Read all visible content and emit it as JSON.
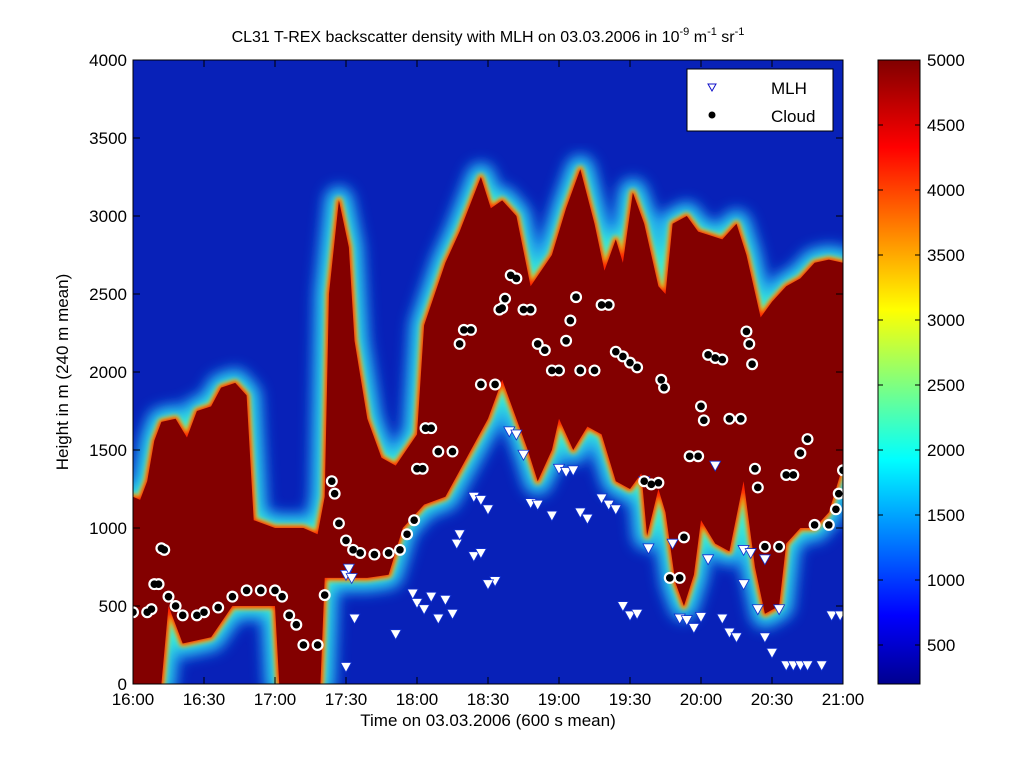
{
  "chart_data": {
    "type": "heatmap",
    "title_main": "CL31 T-REX backscatter density with MLH on 03.03.2006 in 10",
    "title_exp1": "-9",
    "title_mid": " m",
    "title_exp2": "-1",
    "title_mid2": " sr",
    "title_exp3": "-1",
    "xlabel": "Time on 03.03.2006 (600 s mean)",
    "ylabel": "Height in m (240 m mean)",
    "xlim": [
      16.0,
      21.0
    ],
    "ylim": [
      0,
      4000
    ],
    "x_ticks": [
      16.0,
      16.5,
      17.0,
      17.5,
      18.0,
      18.5,
      19.0,
      19.5,
      20.0,
      20.5,
      21.0
    ],
    "x_tick_labels": [
      "16:00",
      "16:30",
      "17:00",
      "17:30",
      "18:00",
      "18:30",
      "19:00",
      "19:30",
      "20:00",
      "20:30",
      "21:00"
    ],
    "y_ticks": [
      0,
      500,
      1000,
      1500,
      2000,
      2500,
      3000,
      3500,
      4000
    ],
    "y_tick_labels": [
      "0",
      "500",
      "1000",
      "1500",
      "2000",
      "2500",
      "3000",
      "3500",
      "4000"
    ],
    "colorbar": {
      "clim": [
        200,
        5000
      ],
      "ticks": [
        500,
        1000,
        1500,
        2000,
        2500,
        3000,
        3500,
        4000,
        4500,
        5000
      ],
      "tick_labels": [
        "500",
        "1000",
        "1500",
        "2000",
        "2500",
        "3000",
        "3500",
        "4000",
        "4500",
        "5000"
      ]
    },
    "legend": {
      "placement": "top-right",
      "entries": [
        "MLH",
        "Cloud"
      ]
    },
    "layer_top": [
      [
        16.0,
        1200
      ],
      [
        16.05,
        1180
      ],
      [
        16.1,
        1300
      ],
      [
        16.15,
        1560
      ],
      [
        16.2,
        1680
      ],
      [
        16.3,
        1700
      ],
      [
        16.38,
        1580
      ],
      [
        16.45,
        1750
      ],
      [
        16.55,
        1780
      ],
      [
        16.62,
        1900
      ],
      [
        16.72,
        1930
      ],
      [
        16.8,
        1850
      ],
      [
        16.85,
        1050
      ],
      [
        17.0,
        1000
      ],
      [
        17.2,
        1000
      ],
      [
        17.3,
        960
      ],
      [
        17.35,
        1200
      ],
      [
        17.38,
        2500
      ],
      [
        17.45,
        3100
      ],
      [
        17.52,
        2800
      ],
      [
        17.56,
        2200
      ],
      [
        17.65,
        1700
      ],
      [
        17.75,
        1450
      ],
      [
        17.85,
        1400
      ],
      [
        18.0,
        1600
      ],
      [
        18.05,
        2300
      ],
      [
        18.2,
        2700
      ],
      [
        18.3,
        2900
      ],
      [
        18.45,
        3250
      ],
      [
        18.52,
        3050
      ],
      [
        18.6,
        3100
      ],
      [
        18.7,
        3000
      ],
      [
        18.8,
        2550
      ],
      [
        18.95,
        2750
      ],
      [
        19.05,
        3050
      ],
      [
        19.15,
        3300
      ],
      [
        19.25,
        2950
      ],
      [
        19.32,
        2650
      ],
      [
        19.4,
        2850
      ],
      [
        19.45,
        2700
      ],
      [
        19.52,
        3150
      ],
      [
        19.6,
        2950
      ],
      [
        19.7,
        2550
      ],
      [
        19.75,
        2500
      ],
      [
        19.8,
        2950
      ],
      [
        19.9,
        3000
      ],
      [
        19.98,
        2900
      ],
      [
        20.05,
        2880
      ],
      [
        20.15,
        2850
      ],
      [
        20.25,
        2950
      ],
      [
        20.32,
        2750
      ],
      [
        20.42,
        2350
      ],
      [
        20.5,
        2450
      ],
      [
        20.6,
        2550
      ],
      [
        20.7,
        2600
      ],
      [
        20.8,
        2700
      ],
      [
        20.9,
        2720
      ],
      [
        21.0,
        2700
      ]
    ],
    "layer_bottom": [
      [
        16.0,
        0
      ],
      [
        16.2,
        0
      ],
      [
        16.25,
        500
      ],
      [
        16.35,
        260
      ],
      [
        16.55,
        300
      ],
      [
        16.7,
        500
      ],
      [
        17.0,
        500
      ],
      [
        17.03,
        0
      ],
      [
        17.32,
        0
      ],
      [
        17.35,
        680
      ],
      [
        17.65,
        680
      ],
      [
        17.8,
        700
      ],
      [
        17.9,
        1000
      ],
      [
        18.05,
        1150
      ],
      [
        18.2,
        1200
      ],
      [
        18.35,
        1450
      ],
      [
        18.5,
        1700
      ],
      [
        18.6,
        1950
      ],
      [
        18.7,
        1700
      ],
      [
        18.78,
        1500
      ],
      [
        18.85,
        1300
      ],
      [
        18.95,
        1500
      ],
      [
        19.0,
        1700
      ],
      [
        19.1,
        1500
      ],
      [
        19.2,
        1650
      ],
      [
        19.3,
        1600
      ],
      [
        19.4,
        1300
      ],
      [
        19.5,
        1250
      ],
      [
        19.58,
        1350
      ],
      [
        19.62,
        950
      ],
      [
        19.7,
        1250
      ],
      [
        19.75,
        1100
      ],
      [
        19.82,
        650
      ],
      [
        19.88,
        500
      ],
      [
        19.95,
        700
      ],
      [
        20.0,
        1050
      ],
      [
        20.1,
        900
      ],
      [
        20.2,
        850
      ],
      [
        20.3,
        1300
      ],
      [
        20.38,
        750
      ],
      [
        20.45,
        450
      ],
      [
        20.55,
        500
      ],
      [
        20.6,
        900
      ],
      [
        20.7,
        1000
      ],
      [
        20.8,
        1000
      ],
      [
        20.9,
        1100
      ],
      [
        21.0,
        1400
      ]
    ],
    "series_mlh": [
      [
        17.5,
        700
      ],
      [
        17.52,
        740
      ],
      [
        17.54,
        680
      ],
      [
        17.56,
        420
      ],
      [
        17.5,
        110
      ],
      [
        17.85,
        320
      ],
      [
        17.97,
        580
      ],
      [
        18.0,
        520
      ],
      [
        18.05,
        480
      ],
      [
        18.1,
        560
      ],
      [
        18.15,
        420
      ],
      [
        18.2,
        540
      ],
      [
        18.25,
        450
      ],
      [
        18.28,
        900
      ],
      [
        18.3,
        960
      ],
      [
        18.4,
        1200
      ],
      [
        18.45,
        1180
      ],
      [
        18.5,
        1120
      ],
      [
        18.4,
        820
      ],
      [
        18.45,
        840
      ],
      [
        18.55,
        660
      ],
      [
        18.5,
        640
      ],
      [
        18.65,
        1620
      ],
      [
        18.7,
        1600
      ],
      [
        18.75,
        1470
      ],
      [
        18.8,
        1160
      ],
      [
        18.85,
        1150
      ],
      [
        18.95,
        1080
      ],
      [
        19.0,
        1380
      ],
      [
        19.05,
        1360
      ],
      [
        19.1,
        1370
      ],
      [
        19.15,
        1100
      ],
      [
        19.2,
        1060
      ],
      [
        19.3,
        1190
      ],
      [
        19.35,
        1150
      ],
      [
        19.4,
        1120
      ],
      [
        19.45,
        500
      ],
      [
        19.5,
        440
      ],
      [
        19.55,
        450
      ],
      [
        19.6,
        1300
      ],
      [
        19.63,
        870
      ],
      [
        19.8,
        900
      ],
      [
        19.85,
        420
      ],
      [
        19.9,
        410
      ],
      [
        19.95,
        360
      ],
      [
        20.0,
        430
      ],
      [
        20.05,
        800
      ],
      [
        20.1,
        1400
      ],
      [
        20.15,
        420
      ],
      [
        20.2,
        330
      ],
      [
        20.25,
        300
      ],
      [
        20.3,
        860
      ],
      [
        20.35,
        840
      ],
      [
        20.4,
        480
      ],
      [
        20.45,
        300
      ],
      [
        20.5,
        200
      ],
      [
        20.55,
        480
      ],
      [
        20.6,
        120
      ],
      [
        20.65,
        120
      ],
      [
        20.7,
        120
      ],
      [
        20.75,
        120
      ],
      [
        20.85,
        120
      ],
      [
        20.92,
        440
      ],
      [
        20.98,
        440
      ],
      [
        20.45,
        800
      ],
      [
        20.3,
        640
      ]
    ],
    "series_cloud": [
      [
        16.0,
        460
      ],
      [
        16.1,
        460
      ],
      [
        16.13,
        480
      ],
      [
        16.15,
        640
      ],
      [
        16.18,
        640
      ],
      [
        16.2,
        870
      ],
      [
        16.22,
        860
      ],
      [
        16.25,
        560
      ],
      [
        16.3,
        500
      ],
      [
        16.35,
        440
      ],
      [
        16.45,
        440
      ],
      [
        16.5,
        460
      ],
      [
        16.6,
        490
      ],
      [
        16.7,
        560
      ],
      [
        16.8,
        600
      ],
      [
        16.9,
        600
      ],
      [
        17.0,
        600
      ],
      [
        17.05,
        560
      ],
      [
        17.1,
        440
      ],
      [
        17.15,
        380
      ],
      [
        17.2,
        250
      ],
      [
        17.3,
        250
      ],
      [
        17.35,
        570
      ],
      [
        17.4,
        1300
      ],
      [
        17.42,
        1220
      ],
      [
        17.45,
        1030
      ],
      [
        17.5,
        920
      ],
      [
        17.55,
        860
      ],
      [
        17.6,
        840
      ],
      [
        17.7,
        830
      ],
      [
        17.8,
        840
      ],
      [
        17.88,
        860
      ],
      [
        17.93,
        960
      ],
      [
        17.98,
        1050
      ],
      [
        18.0,
        1380
      ],
      [
        18.04,
        1380
      ],
      [
        18.06,
        1640
      ],
      [
        18.1,
        1640
      ],
      [
        18.15,
        1490
      ],
      [
        18.25,
        1490
      ],
      [
        18.3,
        2180
      ],
      [
        18.33,
        2270
      ],
      [
        18.38,
        2270
      ],
      [
        18.45,
        1920
      ],
      [
        18.55,
        1920
      ],
      [
        18.58,
        2400
      ],
      [
        18.6,
        2410
      ],
      [
        18.62,
        2470
      ],
      [
        18.66,
        2620
      ],
      [
        18.7,
        2600
      ],
      [
        18.75,
        2400
      ],
      [
        18.8,
        2400
      ],
      [
        18.85,
        2180
      ],
      [
        18.9,
        2140
      ],
      [
        18.95,
        2010
      ],
      [
        19.0,
        2010
      ],
      [
        19.05,
        2200
      ],
      [
        19.08,
        2330
      ],
      [
        19.12,
        2480
      ],
      [
        19.15,
        2010
      ],
      [
        19.25,
        2010
      ],
      [
        19.3,
        2430
      ],
      [
        19.35,
        2430
      ],
      [
        19.4,
        2130
      ],
      [
        19.45,
        2100
      ],
      [
        19.5,
        2060
      ],
      [
        19.55,
        2030
      ],
      [
        19.6,
        1300
      ],
      [
        19.65,
        1280
      ],
      [
        19.7,
        1290
      ],
      [
        19.72,
        1950
      ],
      [
        19.74,
        1900
      ],
      [
        19.78,
        680
      ],
      [
        19.85,
        680
      ],
      [
        19.88,
        940
      ],
      [
        19.92,
        1460
      ],
      [
        19.98,
        1460
      ],
      [
        20.0,
        1780
      ],
      [
        20.02,
        1690
      ],
      [
        20.05,
        2110
      ],
      [
        20.1,
        2090
      ],
      [
        20.15,
        2080
      ],
      [
        20.2,
        1700
      ],
      [
        20.28,
        1700
      ],
      [
        20.32,
        2260
      ],
      [
        20.34,
        2180
      ],
      [
        20.36,
        2050
      ],
      [
        20.38,
        1380
      ],
      [
        20.4,
        1260
      ],
      [
        20.45,
        880
      ],
      [
        20.55,
        880
      ],
      [
        20.6,
        1340
      ],
      [
        20.65,
        1340
      ],
      [
        20.7,
        1480
      ],
      [
        20.75,
        1570
      ],
      [
        20.8,
        1020
      ],
      [
        20.9,
        1020
      ],
      [
        20.95,
        1120
      ],
      [
        20.97,
        1220
      ],
      [
        21.0,
        1370
      ]
    ]
  }
}
